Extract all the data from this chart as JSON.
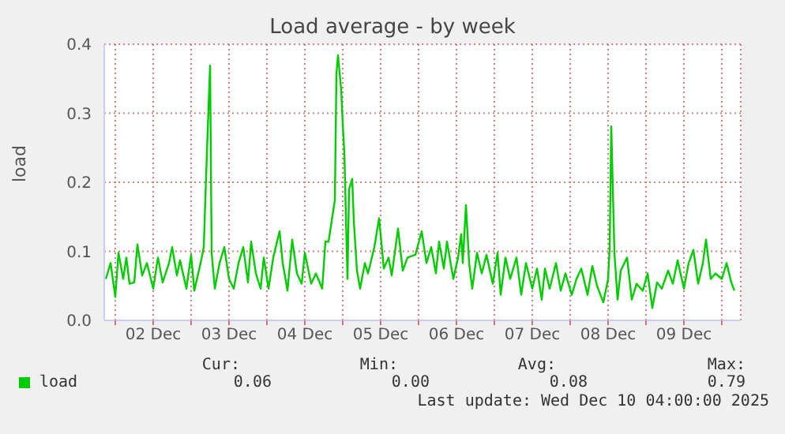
{
  "chart_data": {
    "type": "line",
    "title": "Load average - by week",
    "ylabel": "load",
    "x": [
      "2025-12-01T21:00",
      "2025-12-01T22:30",
      "2025-12-02T00:00",
      "2025-12-02T01:00",
      "2025-12-02T02:30",
      "2025-12-02T03:30",
      "2025-12-02T04:30",
      "2025-12-02T06:00",
      "2025-12-02T07:00",
      "2025-12-02T08:30",
      "2025-12-02T10:00",
      "2025-12-02T12:00",
      "2025-12-02T13:30",
      "2025-12-02T15:00",
      "2025-12-02T17:00",
      "2025-12-02T18:00",
      "2025-12-02T19:30",
      "2025-12-02T20:30",
      "2025-12-02T22:30",
      "2025-12-03T00:00",
      "2025-12-03T01:00",
      "2025-12-03T03:00",
      "2025-12-03T04:00",
      "2025-12-03T05:00",
      "2025-12-03T06:00",
      "2025-12-03T06:30",
      "2025-12-03T07:30",
      "2025-12-03T09:00",
      "2025-12-03T10:30",
      "2025-12-03T12:00",
      "2025-12-03T13:30",
      "2025-12-03T15:00",
      "2025-12-03T16:30",
      "2025-12-03T18:00",
      "2025-12-03T19:00",
      "2025-12-03T20:30",
      "2025-12-03T22:00",
      "2025-12-03T23:00",
      "2025-12-04T00:30",
      "2025-12-04T02:00",
      "2025-12-04T04:00",
      "2025-12-04T05:00",
      "2025-12-04T06:30",
      "2025-12-04T08:00",
      "2025-12-04T09:30",
      "2025-12-04T11:00",
      "2025-12-04T12:00",
      "2025-12-04T14:00",
      "2025-12-04T15:30",
      "2025-12-04T17:30",
      "2025-12-04T18:30",
      "2025-12-04T19:30",
      "2025-12-04T20:30",
      "2025-12-04T21:30",
      "2025-12-04T22:00",
      "2025-12-04T22:30",
      "2025-12-04T23:30",
      "2025-12-05T00:00",
      "2025-12-05T00:30",
      "2025-12-05T01:30",
      "2025-12-05T02:00",
      "2025-12-05T03:00",
      "2025-12-05T03:30",
      "2025-12-05T04:30",
      "2025-12-05T05:30",
      "2025-12-05T07:00",
      "2025-12-05T08:00",
      "2025-12-05T10:00",
      "2025-12-05T11:30",
      "2025-12-05T13:00",
      "2025-12-05T14:30",
      "2025-12-05T15:30",
      "2025-12-05T17:30",
      "2025-12-05T19:00",
      "2025-12-05T20:30",
      "2025-12-05T23:00",
      "2025-12-06T01:00",
      "2025-12-06T02:30",
      "2025-12-06T04:00",
      "2025-12-06T05:30",
      "2025-12-06T06:30",
      "2025-12-06T08:00",
      "2025-12-06T09:00",
      "2025-12-06T11:00",
      "2025-12-06T12:30",
      "2025-12-06T13:30",
      "2025-12-06T14:00",
      "2025-12-06T15:00",
      "2025-12-06T16:00",
      "2025-12-06T17:00",
      "2025-12-06T18:30",
      "2025-12-06T20:00",
      "2025-12-06T21:30",
      "2025-12-06T23:30",
      "2025-12-07T01:00",
      "2025-12-07T02:00",
      "2025-12-07T03:30",
      "2025-12-07T05:00",
      "2025-12-07T07:00",
      "2025-12-07T08:30",
      "2025-12-07T10:00",
      "2025-12-07T12:00",
      "2025-12-07T13:30",
      "2025-12-07T15:00",
      "2025-12-07T16:00",
      "2025-12-07T17:30",
      "2025-12-07T19:30",
      "2025-12-07T21:00",
      "2025-12-07T22:30",
      "2025-12-08T00:30",
      "2025-12-08T02:00",
      "2025-12-08T03:30",
      "2025-12-08T05:30",
      "2025-12-08T07:00",
      "2025-12-08T08:30",
      "2025-12-08T10:30",
      "2025-12-08T12:00",
      "2025-12-08T12:30",
      "2025-12-08T13:00",
      "2025-12-08T14:00",
      "2025-12-08T15:00",
      "2025-12-08T16:00",
      "2025-12-08T18:00",
      "2025-12-08T19:30",
      "2025-12-08T21:00",
      "2025-12-08T23:00",
      "2025-12-09T00:30",
      "2025-12-09T02:00",
      "2025-12-09T03:30",
      "2025-12-09T05:00",
      "2025-12-09T07:00",
      "2025-12-09T08:30",
      "2025-12-09T10:00",
      "2025-12-09T12:00",
      "2025-12-09T13:30",
      "2025-12-09T15:00",
      "2025-12-09T16:30",
      "2025-12-09T18:00",
      "2025-12-09T19:00",
      "2025-12-09T20:30",
      "2025-12-09T22:00",
      "2025-12-10T00:00",
      "2025-12-10T01:30",
      "2025-12-10T03:00",
      "2025-12-10T04:00"
    ],
    "series": [
      {
        "name": "load",
        "color": "#00cc00",
        "values": [
          0.06,
          0.083,
          0.034,
          0.098,
          0.06,
          0.091,
          0.053,
          0.055,
          0.11,
          0.065,
          0.083,
          0.046,
          0.091,
          0.055,
          0.083,
          0.106,
          0.065,
          0.087,
          0.046,
          0.095,
          0.043,
          0.083,
          0.106,
          0.243,
          0.369,
          0.098,
          0.046,
          0.083,
          0.106,
          0.06,
          0.046,
          0.083,
          0.106,
          0.055,
          0.114,
          0.068,
          0.046,
          0.091,
          0.046,
          0.091,
          0.129,
          0.083,
          0.043,
          0.117,
          0.068,
          0.053,
          0.098,
          0.053,
          0.068,
          0.046,
          0.114,
          0.114,
          0.144,
          0.174,
          0.357,
          0.384,
          0.334,
          0.285,
          0.243,
          0.06,
          0.19,
          0.205,
          0.144,
          0.072,
          0.046,
          0.083,
          0.068,
          0.106,
          0.148,
          0.075,
          0.091,
          0.065,
          0.133,
          0.072,
          0.091,
          0.095,
          0.129,
          0.083,
          0.106,
          0.068,
          0.114,
          0.075,
          0.114,
          0.06,
          0.091,
          0.125,
          0.083,
          0.167,
          0.083,
          0.046,
          0.098,
          0.068,
          0.095,
          0.053,
          0.098,
          0.037,
          0.091,
          0.06,
          0.091,
          0.037,
          0.083,
          0.046,
          0.075,
          0.03,
          0.075,
          0.046,
          0.083,
          0.043,
          0.068,
          0.037,
          0.06,
          0.075,
          0.037,
          0.079,
          0.05,
          0.026,
          0.06,
          0.106,
          0.281,
          0.098,
          0.03,
          0.072,
          0.091,
          0.03,
          0.053,
          0.043,
          0.068,
          0.018,
          0.055,
          0.046,
          0.072,
          0.053,
          0.087,
          0.046,
          0.083,
          0.102,
          0.053,
          0.083,
          0.117,
          0.06,
          0.068,
          0.06,
          0.083,
          0.055,
          0.043
        ]
      }
    ],
    "xlim": [
      "2025-12-01T20:30",
      "2025-12-10T06:00"
    ],
    "xticks": [
      {
        "value": "2025-12-02T00:00",
        "label": null
      },
      {
        "value": "2025-12-02T12:00",
        "label": "02 Dec"
      },
      {
        "value": "2025-12-03T00:00",
        "label": null
      },
      {
        "value": "2025-12-03T12:00",
        "label": "03 Dec"
      },
      {
        "value": "2025-12-04T00:00",
        "label": null
      },
      {
        "value": "2025-12-04T12:00",
        "label": "04 Dec"
      },
      {
        "value": "2025-12-05T00:00",
        "label": null
      },
      {
        "value": "2025-12-05T12:00",
        "label": "05 Dec"
      },
      {
        "value": "2025-12-06T00:00",
        "label": null
      },
      {
        "value": "2025-12-06T12:00",
        "label": "06 Dec"
      },
      {
        "value": "2025-12-07T00:00",
        "label": null
      },
      {
        "value": "2025-12-07T12:00",
        "label": "07 Dec"
      },
      {
        "value": "2025-12-08T00:00",
        "label": null
      },
      {
        "value": "2025-12-08T12:00",
        "label": "08 Dec"
      },
      {
        "value": "2025-12-09T00:00",
        "label": null
      },
      {
        "value": "2025-12-09T12:00",
        "label": "09 Dec"
      },
      {
        "value": "2025-12-10T00:00",
        "label": null
      }
    ],
    "ylim": [
      0,
      0.4
    ],
    "yticks": [
      {
        "value": 0,
        "label": "0.0"
      },
      {
        "value": 0.1,
        "label": "0.1"
      },
      {
        "value": 0.2,
        "label": "0.2"
      },
      {
        "value": 0.3,
        "label": "0.3"
      },
      {
        "value": 0.4,
        "label": "0.4"
      }
    ],
    "grid": true,
    "legend": "bottom",
    "marker": "none",
    "line_style": "solid",
    "annotations": [
      "Cur:",
      "0.06",
      "Min:",
      "0.00",
      "Avg:",
      "0.08",
      "Max:",
      "0.79",
      "Last update: Wed Dec 10 04:00:00 2025"
    ]
  }
}
